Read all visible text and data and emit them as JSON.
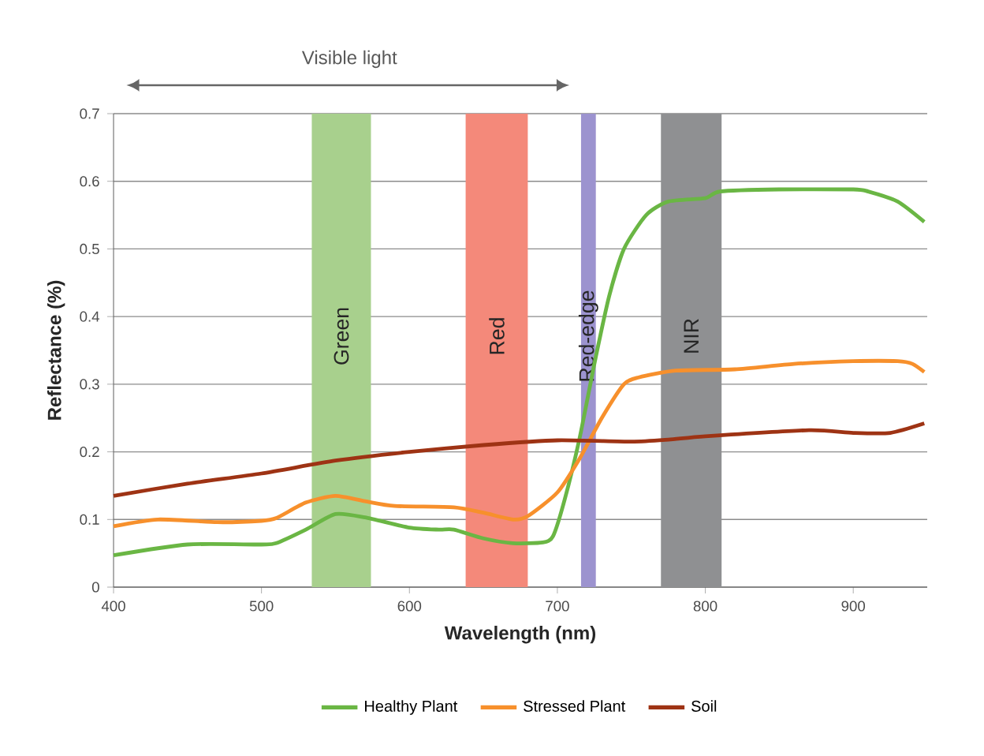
{
  "chart_data": {
    "type": "line",
    "xlabel": "Wavelength (nm)",
    "ylabel": "Reflectance (%)",
    "annotations": [
      "Visible light"
    ],
    "xlim": [
      400,
      950
    ],
    "xticks": [
      400,
      500,
      600,
      700,
      800,
      900
    ],
    "ylim": [
      0,
      0.7
    ],
    "yticks": [
      0,
      0.1,
      0.2,
      0.3,
      0.4,
      0.5,
      0.6,
      0.7
    ],
    "grid": "y",
    "legend": "bottom",
    "marker": "none",
    "line_style": "solid",
    "bands": [
      {
        "axis": "x",
        "from": 534,
        "to": 574,
        "label": "Green",
        "color": "#a8d08d"
      },
      {
        "axis": "x",
        "from": 638,
        "to": 680,
        "label": "Red",
        "color": "#f4897a"
      },
      {
        "axis": "x",
        "from": 716,
        "to": 726,
        "label": "Red-edge",
        "color": "#9c93cf"
      },
      {
        "axis": "x",
        "from": 770,
        "to": 811,
        "label": "NIR",
        "color": "#8f9092"
      }
    ],
    "series": [
      {
        "name": "Healthy Plant",
        "color": "#6ab644",
        "x": [
          400,
          450,
          500,
          510,
          530,
          550,
          570,
          600,
          620,
          630,
          650,
          670,
          690,
          697,
          705,
          715,
          725,
          735,
          745,
          760,
          775,
          800,
          810,
          850,
          900,
          910,
          930,
          948
        ],
        "values": [
          0.047,
          0.063,
          0.063,
          0.065,
          0.085,
          0.108,
          0.103,
          0.088,
          0.085,
          0.085,
          0.072,
          0.065,
          0.066,
          0.075,
          0.13,
          0.22,
          0.33,
          0.43,
          0.5,
          0.55,
          0.57,
          0.575,
          0.585,
          0.588,
          0.588,
          0.585,
          0.57,
          0.54
        ]
      },
      {
        "name": "Stressed Plant",
        "color": "#f7902c",
        "x": [
          400,
          430,
          470,
          500,
          510,
          530,
          550,
          570,
          590,
          630,
          650,
          670,
          680,
          700,
          715,
          730,
          745,
          755,
          780,
          820,
          860,
          900,
          930,
          940,
          948
        ],
        "values": [
          0.09,
          0.1,
          0.096,
          0.098,
          0.102,
          0.125,
          0.135,
          0.127,
          0.12,
          0.118,
          0.11,
          0.1,
          0.105,
          0.14,
          0.19,
          0.25,
          0.3,
          0.31,
          0.32,
          0.322,
          0.33,
          0.334,
          0.334,
          0.33,
          0.318
        ]
      },
      {
        "name": "Soil",
        "color": "#9e3314",
        "x": [
          400,
          450,
          500,
          550,
          600,
          650,
          700,
          750,
          775,
          800,
          870,
          900,
          925,
          948
        ],
        "values": [
          0.135,
          0.153,
          0.168,
          0.187,
          0.2,
          0.21,
          0.217,
          0.215,
          0.218,
          0.223,
          0.232,
          0.228,
          0.228,
          0.242
        ]
      }
    ]
  }
}
